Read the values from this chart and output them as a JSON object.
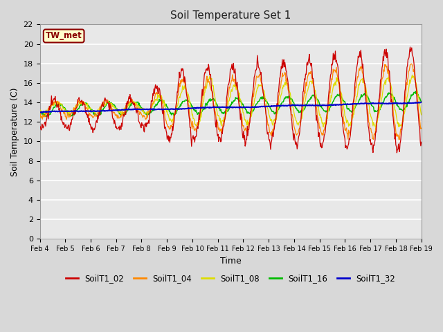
{
  "title": "Soil Temperature Set 1",
  "xlabel": "Time",
  "ylabel": "Soil Temperature (C)",
  "ylim": [
    0,
    22
  ],
  "yticks": [
    0,
    2,
    4,
    6,
    8,
    10,
    12,
    14,
    16,
    18,
    20,
    22
  ],
  "fig_bg_color": "#d8d8d8",
  "plot_bg_color": "#e8e8e8",
  "grid_color": "#ffffff",
  "annotation_text": "TW_met",
  "annotation_bg": "#ffffcc",
  "annotation_border": "#8b0000",
  "annotation_text_color": "#8b0000",
  "series_colors": {
    "SoilT1_02": "#cc0000",
    "SoilT1_04": "#ff8800",
    "SoilT1_08": "#dddd00",
    "SoilT1_16": "#00bb00",
    "SoilT1_32": "#0000cc"
  },
  "xtick_labels": [
    "Feb 4",
    "Feb 5",
    "Feb 6",
    "Feb 7",
    "Feb 8",
    "Feb 9",
    "Feb 10",
    "Feb 11",
    "Feb 12",
    "Feb 13",
    "Feb 14",
    "Feb 15",
    "Feb 16",
    "Feb 17",
    "Feb 18",
    "Feb 19"
  ],
  "n_days": 15,
  "points_per_day": 48
}
